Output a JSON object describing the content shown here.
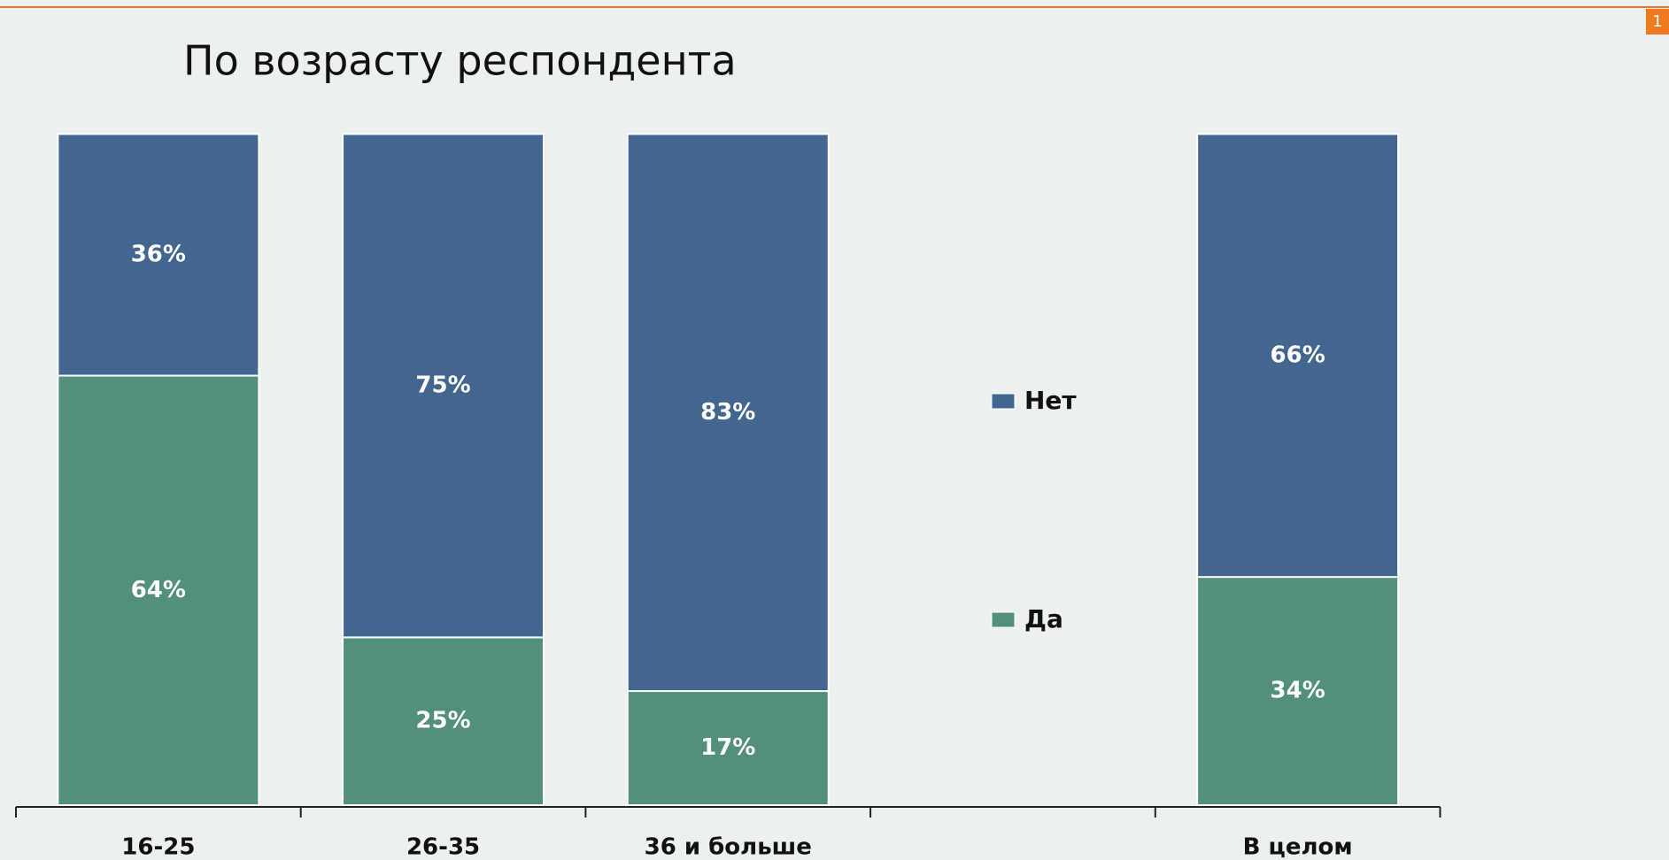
{
  "page_number": "1",
  "chart_data": {
    "type": "stacked_bar",
    "title": "По возрасту респондента",
    "categories": [
      "16-25",
      "26-35",
      "36 и больше",
      null,
      "В целом"
    ],
    "series": [
      {
        "name": "Да",
        "color": "#528f7c",
        "values": [
          64,
          25,
          17,
          null,
          34
        ],
        "value_labels": [
          "64%",
          "25%",
          "17%",
          null,
          "34%"
        ]
      },
      {
        "name": "Нет",
        "color": "#43668e",
        "values": [
          36,
          75,
          83,
          null,
          66
        ],
        "value_labels": [
          "36%",
          "75%",
          "83%",
          null,
          "66%"
        ]
      }
    ],
    "ylim": [
      0,
      100
    ],
    "legend": "right"
  }
}
